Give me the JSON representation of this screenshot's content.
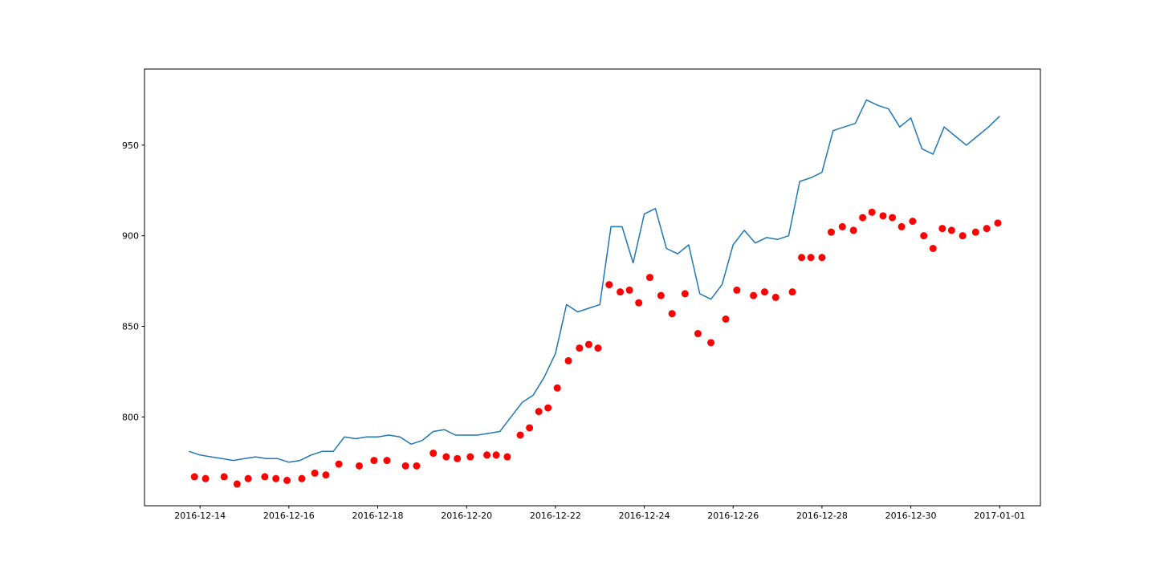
{
  "chart_data": {
    "type": "line",
    "xlim": [
      "2016-12-12T18:00",
      "2017-01-01T22:00"
    ],
    "xticks": [
      "2016-12-14",
      "2016-12-16",
      "2016-12-18",
      "2016-12-20",
      "2016-12-22",
      "2016-12-24",
      "2016-12-26",
      "2016-12-28",
      "2016-12-30",
      "2017-01-01"
    ],
    "ylim": [
      751,
      992
    ],
    "yticks": [
      800,
      850,
      900,
      950
    ],
    "series": [
      {
        "type": "line",
        "color": "#1f77b4",
        "x": [
          "2016-12-13T18:00",
          "2016-12-14T00:00",
          "2016-12-14T06:00",
          "2016-12-14T12:00",
          "2016-12-14T18:00",
          "2016-12-15T00:00",
          "2016-12-15T06:00",
          "2016-12-15T12:00",
          "2016-12-15T18:00",
          "2016-12-16T00:00",
          "2016-12-16T06:00",
          "2016-12-16T12:00",
          "2016-12-16T18:00",
          "2016-12-17T00:00",
          "2016-12-17T06:00",
          "2016-12-17T12:00",
          "2016-12-17T18:00",
          "2016-12-18T00:00",
          "2016-12-18T06:00",
          "2016-12-18T12:00",
          "2016-12-18T18:00",
          "2016-12-19T00:00",
          "2016-12-19T06:00",
          "2016-12-19T12:00",
          "2016-12-19T18:00",
          "2016-12-20T00:00",
          "2016-12-20T06:00",
          "2016-12-20T12:00",
          "2016-12-20T18:00",
          "2016-12-21T00:00",
          "2016-12-21T06:00",
          "2016-12-21T12:00",
          "2016-12-21T18:00",
          "2016-12-22T00:00",
          "2016-12-22T06:00",
          "2016-12-22T12:00",
          "2016-12-22T18:00",
          "2016-12-23T00:00",
          "2016-12-23T06:00",
          "2016-12-23T12:00",
          "2016-12-23T18:00",
          "2016-12-24T00:00",
          "2016-12-24T06:00",
          "2016-12-24T12:00",
          "2016-12-24T18:00",
          "2016-12-25T00:00",
          "2016-12-25T06:00",
          "2016-12-25T12:00",
          "2016-12-25T18:00",
          "2016-12-26T00:00",
          "2016-12-26T06:00",
          "2016-12-26T12:00",
          "2016-12-26T18:00",
          "2016-12-27T00:00",
          "2016-12-27T06:00",
          "2016-12-27T12:00",
          "2016-12-27T18:00",
          "2016-12-28T00:00",
          "2016-12-28T06:00",
          "2016-12-28T12:00",
          "2016-12-28T18:00",
          "2016-12-29T00:00",
          "2016-12-29T06:00",
          "2016-12-29T12:00",
          "2016-12-29T18:00",
          "2016-12-30T00:00",
          "2016-12-30T06:00",
          "2016-12-30T12:00",
          "2016-12-30T18:00",
          "2016-12-31T00:00",
          "2016-12-31T06:00",
          "2016-12-31T12:00",
          "2016-12-31T18:00",
          "2017-01-01T00:00"
        ],
        "values": [
          781,
          779,
          778,
          777,
          776,
          777,
          778,
          777,
          777,
          775,
          776,
          779,
          781,
          781,
          789,
          788,
          789,
          789,
          790,
          789,
          785,
          787,
          792,
          793,
          790,
          790,
          790,
          791,
          792,
          800,
          808,
          812,
          822,
          835,
          862,
          858,
          860,
          862,
          905,
          905,
          885,
          912,
          915,
          893,
          890,
          895,
          868,
          865,
          873,
          895,
          903,
          896,
          899,
          898,
          900,
          930,
          932,
          935,
          958,
          960,
          962,
          975,
          972,
          970,
          960,
          965,
          948,
          945,
          960,
          955,
          950,
          955,
          960,
          966
        ]
      },
      {
        "type": "scatter",
        "color": "#ff0000",
        "x": [
          "2016-12-13T21:00",
          "2016-12-14T03:00",
          "2016-12-14T13:00",
          "2016-12-14T20:00",
          "2016-12-15T02:00",
          "2016-12-15T11:00",
          "2016-12-15T17:00",
          "2016-12-15T23:00",
          "2016-12-16T07:00",
          "2016-12-16T14:00",
          "2016-12-16T20:00",
          "2016-12-17T03:00",
          "2016-12-17T14:00",
          "2016-12-17T22:00",
          "2016-12-18T05:00",
          "2016-12-18T15:00",
          "2016-12-18T21:00",
          "2016-12-19T06:00",
          "2016-12-19T13:00",
          "2016-12-19T19:00",
          "2016-12-20T02:00",
          "2016-12-20T11:00",
          "2016-12-20T16:00",
          "2016-12-20T22:00",
          "2016-12-21T05:00",
          "2016-12-21T10:00",
          "2016-12-21T15:00",
          "2016-12-21T20:00",
          "2016-12-22T01:00",
          "2016-12-22T07:00",
          "2016-12-22T13:00",
          "2016-12-22T18:00",
          "2016-12-22T23:00",
          "2016-12-23T05:00",
          "2016-12-23T11:00",
          "2016-12-23T16:00",
          "2016-12-23T21:00",
          "2016-12-24T03:00",
          "2016-12-24T09:00",
          "2016-12-24T15:00",
          "2016-12-24T22:00",
          "2016-12-25T05:00",
          "2016-12-25T12:00",
          "2016-12-25T20:00",
          "2016-12-26T02:00",
          "2016-12-26T11:00",
          "2016-12-26T17:00",
          "2016-12-26T23:00",
          "2016-12-27T08:00",
          "2016-12-27T13:00",
          "2016-12-27T18:00",
          "2016-12-28T00:00",
          "2016-12-28T05:00",
          "2016-12-28T11:00",
          "2016-12-28T17:00",
          "2016-12-28T22:00",
          "2016-12-29T03:00",
          "2016-12-29T09:00",
          "2016-12-29T14:00",
          "2016-12-29T19:00",
          "2016-12-30T01:00",
          "2016-12-30T07:00",
          "2016-12-30T12:00",
          "2016-12-30T17:00",
          "2016-12-30T22:00",
          "2016-12-31T04:00",
          "2016-12-31T11:00",
          "2016-12-31T17:00",
          "2016-12-31T23:00"
        ],
        "values": [
          767,
          766,
          767,
          763,
          766,
          767,
          766,
          765,
          766,
          769,
          768,
          774,
          773,
          776,
          776,
          773,
          773,
          780,
          778,
          777,
          778,
          779,
          779,
          778,
          790,
          794,
          803,
          805,
          816,
          831,
          838,
          840,
          838,
          873,
          869,
          870,
          863,
          877,
          867,
          857,
          868,
          846,
          841,
          854,
          870,
          867,
          869,
          866,
          869,
          888,
          888,
          888,
          902,
          905,
          903,
          910,
          913,
          911,
          910,
          905,
          908,
          900,
          893,
          904,
          903,
          900,
          902,
          904,
          907
        ]
      }
    ]
  }
}
